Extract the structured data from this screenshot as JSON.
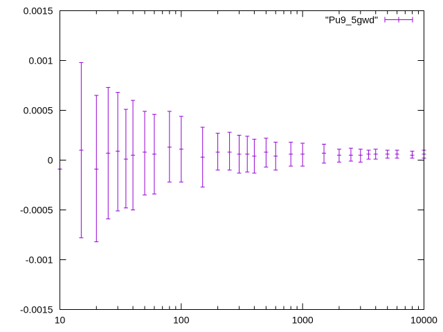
{
  "chart_data": {
    "type": "scatter",
    "title": "",
    "xlabel": "",
    "ylabel": "",
    "x_scale": "log",
    "xlim": [
      10,
      10000
    ],
    "ylim": [
      -0.0015,
      0.0015
    ],
    "grid": false,
    "legend_position": "top-right",
    "x_ticks": [
      {
        "value": 10,
        "label": "10"
      },
      {
        "value": 100,
        "label": "100"
      },
      {
        "value": 1000,
        "label": "1000"
      },
      {
        "value": 10000,
        "label": "10000"
      }
    ],
    "y_ticks": [
      {
        "value": 0.0015,
        "label": "0.0015"
      },
      {
        "value": 0.001,
        "label": "0.001"
      },
      {
        "value": 0.0005,
        "label": "0.0005"
      },
      {
        "value": 0,
        "label": "0"
      },
      {
        "value": -0.0005,
        "label": "-0.0005"
      },
      {
        "value": -0.001,
        "label": "-0.001"
      },
      {
        "value": -0.0015,
        "label": "-0.0015"
      }
    ],
    "series": [
      {
        "name": "\"Pu9_5gwd\"",
        "color": "#9400d3",
        "points": [
          {
            "x": 10,
            "y": -9e-05,
            "ylow": -9e-05,
            "yhigh": -9e-05
          },
          {
            "x": 15,
            "y": 0.0001,
            "ylow": -0.00078,
            "yhigh": 0.00098
          },
          {
            "x": 20,
            "y": -9e-05,
            "ylow": -0.00082,
            "yhigh": 0.00065
          },
          {
            "x": 25,
            "y": 7e-05,
            "ylow": -0.00059,
            "yhigh": 0.00073
          },
          {
            "x": 30,
            "y": 9e-05,
            "ylow": -0.00051,
            "yhigh": 0.00068
          },
          {
            "x": 35,
            "y": 1e-05,
            "ylow": -0.00048,
            "yhigh": 0.00051
          },
          {
            "x": 40,
            "y": 5e-05,
            "ylow": -0.0005,
            "yhigh": 0.0006
          },
          {
            "x": 50,
            "y": 8e-05,
            "ylow": -0.00035,
            "yhigh": 0.00049
          },
          {
            "x": 60,
            "y": 6e-05,
            "ylow": -0.00034,
            "yhigh": 0.00046
          },
          {
            "x": 80,
            "y": 0.00013,
            "ylow": -0.00022,
            "yhigh": 0.00049
          },
          {
            "x": 100,
            "y": 0.00011,
            "ylow": -0.00022,
            "yhigh": 0.00044
          },
          {
            "x": 150,
            "y": 3e-05,
            "ylow": -0.00027,
            "yhigh": 0.00033
          },
          {
            "x": 200,
            "y": 8e-05,
            "ylow": -0.0001,
            "yhigh": 0.00027
          },
          {
            "x": 250,
            "y": 8e-05,
            "ylow": -0.0001,
            "yhigh": 0.00028
          },
          {
            "x": 300,
            "y": 6e-05,
            "ylow": -0.00013,
            "yhigh": 0.00025
          },
          {
            "x": 350,
            "y": 6e-05,
            "ylow": -0.00012,
            "yhigh": 0.00024
          },
          {
            "x": 400,
            "y": 4e-05,
            "ylow": -0.00013,
            "yhigh": 0.00021
          },
          {
            "x": 500,
            "y": 8e-05,
            "ylow": -7e-05,
            "yhigh": 0.00022
          },
          {
            "x": 600,
            "y": 4e-05,
            "ylow": -0.0001,
            "yhigh": 0.00018
          },
          {
            "x": 800,
            "y": 6e-05,
            "ylow": -6e-05,
            "yhigh": 0.00018
          },
          {
            "x": 1000,
            "y": 6e-05,
            "ylow": -6e-05,
            "yhigh": 0.00017
          },
          {
            "x": 1500,
            "y": 7e-05,
            "ylow": -3e-05,
            "yhigh": 0.00016
          },
          {
            "x": 2000,
            "y": 5e-05,
            "ylow": -2e-05,
            "yhigh": 0.00011
          },
          {
            "x": 2500,
            "y": 5e-05,
            "ylow": -1e-05,
            "yhigh": 0.00012
          },
          {
            "x": 3000,
            "y": 5e-05,
            "ylow": -2e-05,
            "yhigh": 0.00011
          },
          {
            "x": 3500,
            "y": 6e-05,
            "ylow": 1e-05,
            "yhigh": 0.0001
          },
          {
            "x": 4000,
            "y": 6e-05,
            "ylow": 1e-05,
            "yhigh": 0.00011
          },
          {
            "x": 5000,
            "y": 6e-05,
            "ylow": 2e-05,
            "yhigh": 0.0001
          },
          {
            "x": 6000,
            "y": 6e-05,
            "ylow": 2e-05,
            "yhigh": 0.0001
          },
          {
            "x": 8000,
            "y": 5e-05,
            "ylow": 2e-05,
            "yhigh": 9e-05
          },
          {
            "x": 10000,
            "y": 6e-05,
            "ylow": 2e-05,
            "yhigh": 0.0001
          }
        ]
      }
    ]
  }
}
